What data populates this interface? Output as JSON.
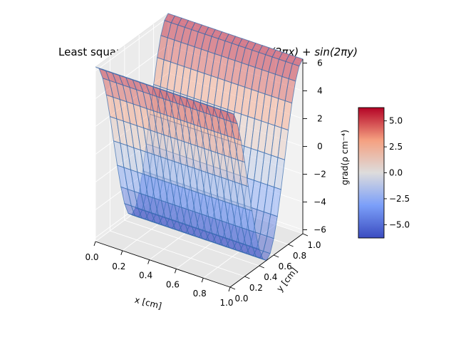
{
  "chart_data": {
    "type": "surface3d",
    "title_pre": "Least squares (grad(",
    "title_rho": "ρ",
    "title_mid": "))",
    "title_sub": "y",
    "title_of": " of ",
    "title_expr": "ρ(x, y) = sin(2πx) + sin(2πy)",
    "xlabel": "x [cm]",
    "ylabel": "y [cm]",
    "zlabel": "grad(ρ cm⁻⁴)",
    "xlim": [
      0,
      1
    ],
    "ylim": [
      0,
      1
    ],
    "zlim": [
      -6.28,
      6.28
    ],
    "xticks": [
      0.0,
      0.2,
      0.4,
      0.6,
      0.8,
      1.0
    ],
    "yticks": [
      0.0,
      0.2,
      0.4,
      0.6,
      0.8,
      1.0
    ],
    "zticks": [
      -6,
      -4,
      -2,
      0,
      2,
      4,
      6
    ],
    "xtick_labels": [
      "0.0",
      "0.2",
      "0.4",
      "0.6",
      "0.8",
      "1.0"
    ],
    "ytick_labels": [
      "0.0",
      "0.2",
      "0.4",
      "0.6",
      "0.8",
      "1.0"
    ],
    "ztick_labels": [
      "−6",
      "−4",
      "−2",
      "0",
      "2",
      "4",
      "6"
    ],
    "function": "z = 2π·cos(2πy)",
    "grid_n": 20,
    "colormap": "coolwarm",
    "surface_alpha": 0.5,
    "wire_color": "#3b6fb0",
    "colorbar": {
      "range": [
        -6.28,
        6.28
      ],
      "ticks": [
        -5.0,
        -2.5,
        0.0,
        2.5,
        5.0
      ],
      "tick_labels": [
        "−5.0",
        "−2.5",
        "0.0",
        "2.5",
        "5.0"
      ]
    },
    "grid": true
  }
}
